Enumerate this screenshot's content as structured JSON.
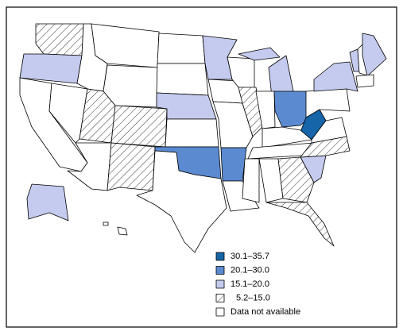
{
  "legend": {
    "items": [
      {
        "label": "30.1–35.7"
      },
      {
        "label": "20.1–30.0"
      },
      {
        "label": "15.1–20.0"
      },
      {
        "label": "5.2–15.0"
      },
      {
        "label": "Data not available"
      }
    ]
  }
}
